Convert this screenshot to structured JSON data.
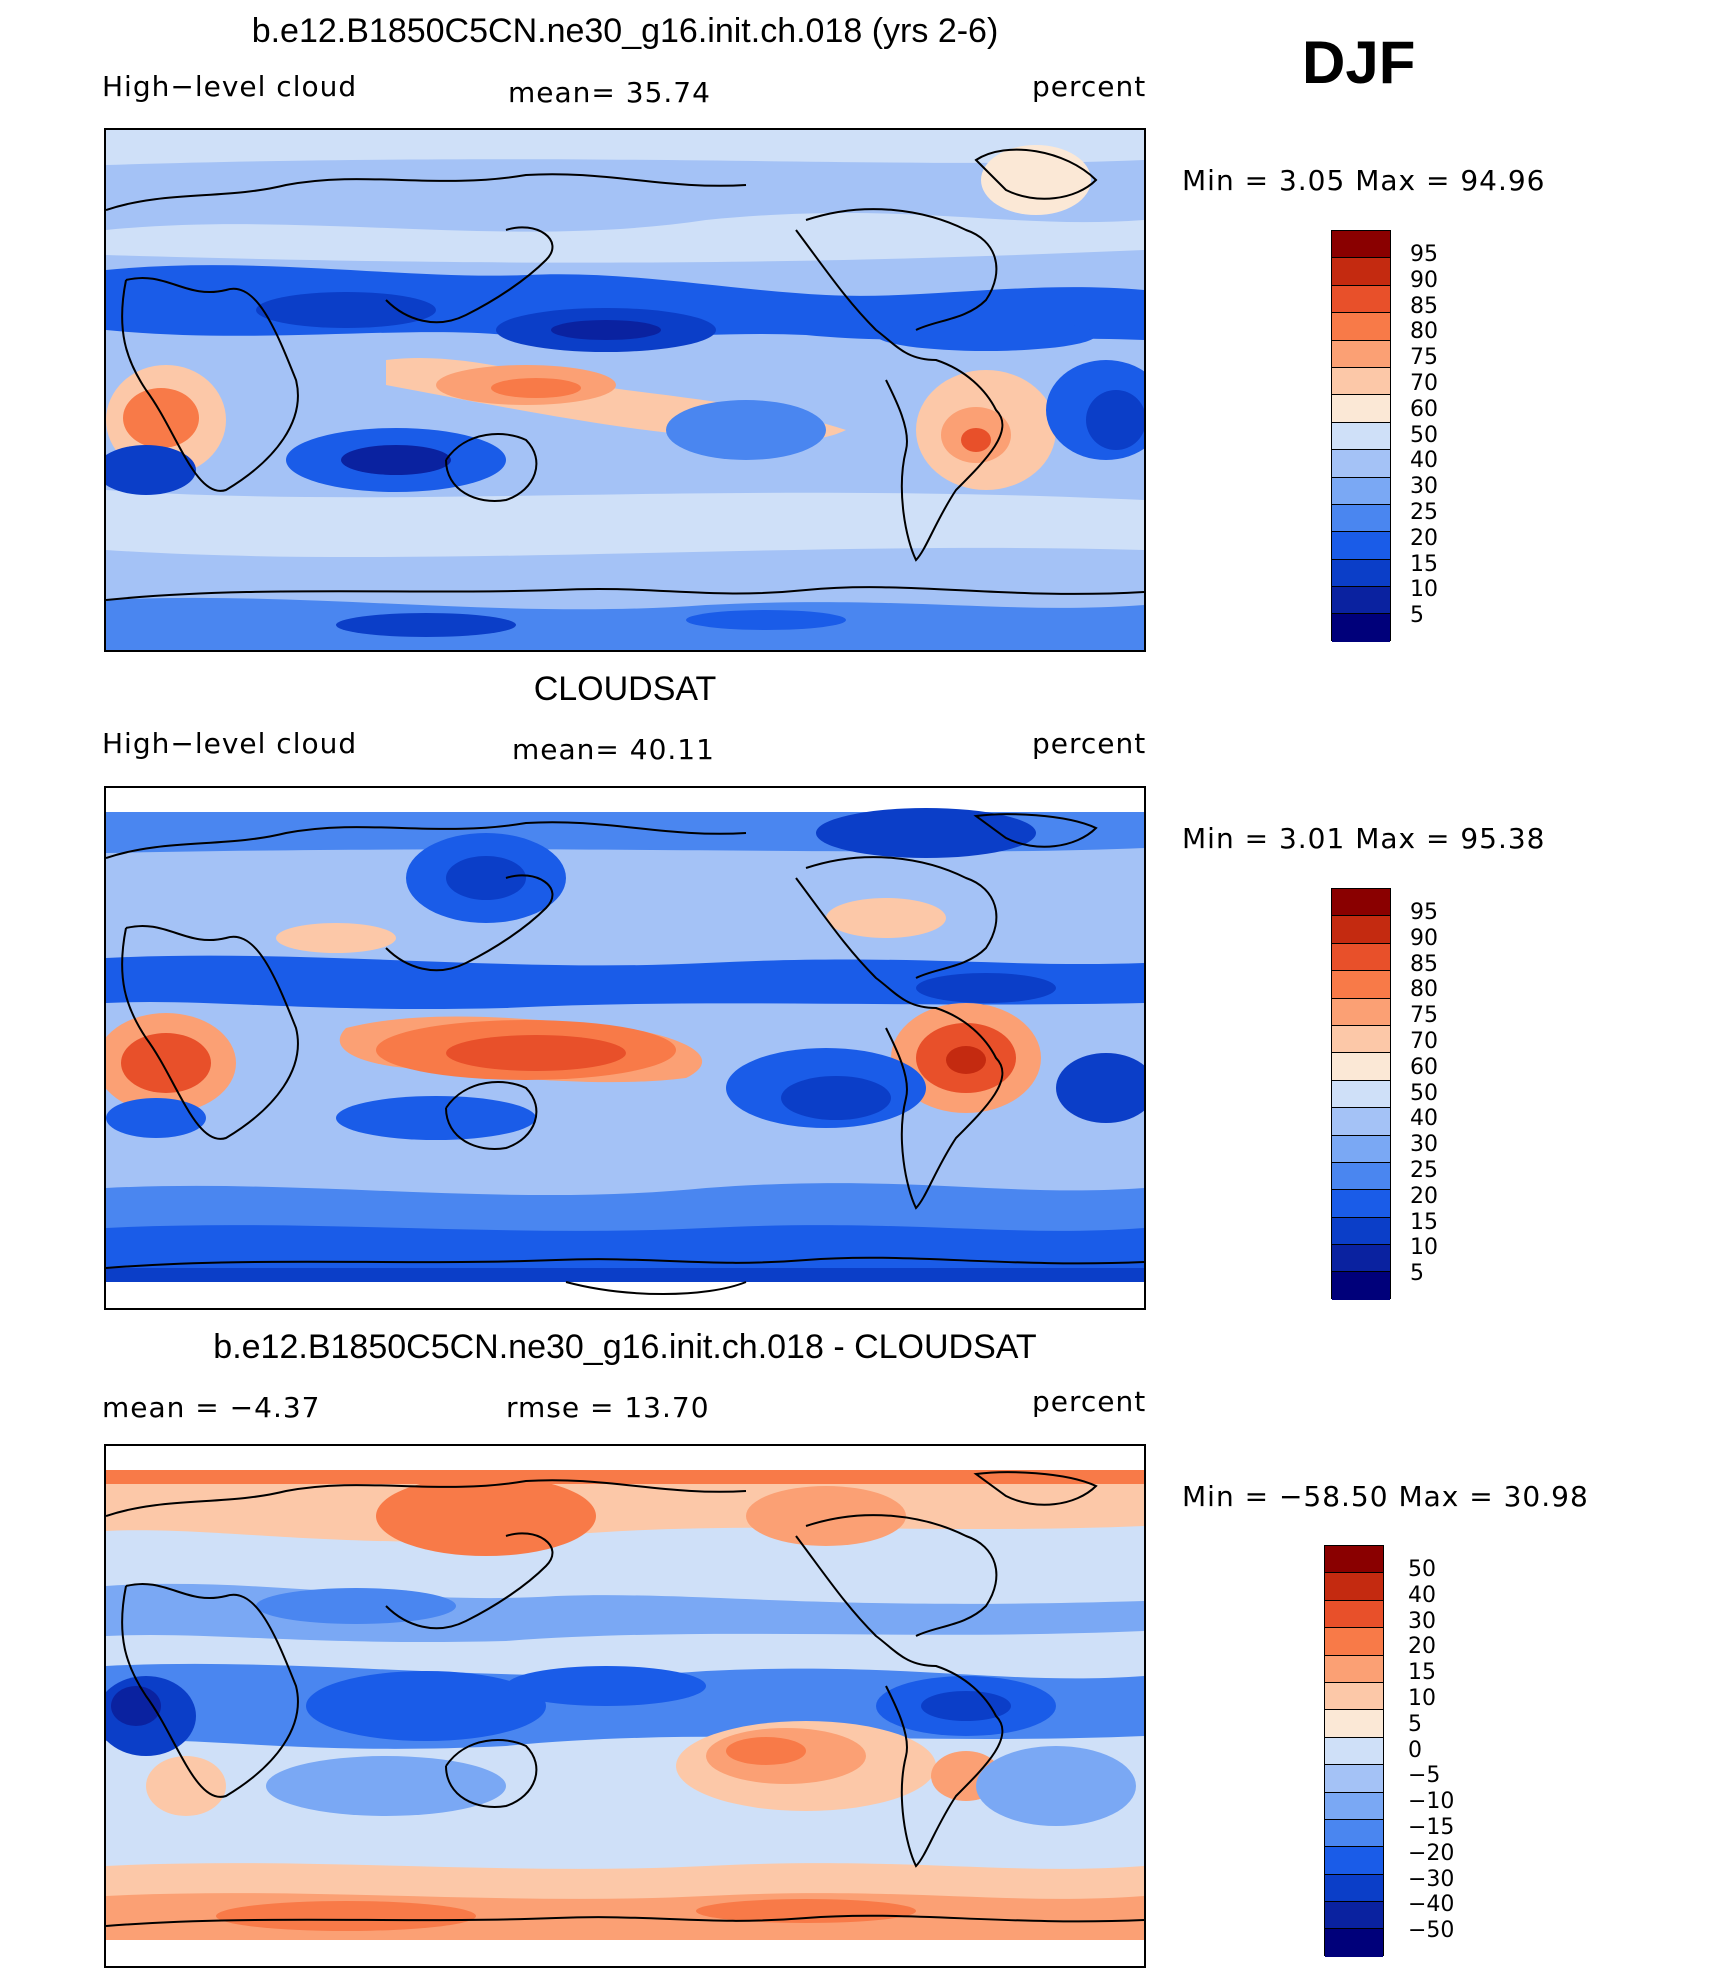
{
  "season": "DJF",
  "colors": {
    "abs": [
      "#00007a",
      "#0a22a0",
      "#0b3ec8",
      "#1a5ce8",
      "#4a86f0",
      "#7aa8f4",
      "#a4c2f6",
      "#cfe0f8",
      "#fbe8d6",
      "#fcc8a8",
      "#fba074",
      "#f87a48",
      "#e8502a",
      "#c42a10",
      "#8a0000"
    ],
    "diff": [
      "#00007a",
      "#0a22a0",
      "#0b3ec8",
      "#1a5ce8",
      "#4a86f0",
      "#7aa8f4",
      "#a4c2f6",
      "#cfe0f8",
      "#fbe8d6",
      "#fcc8a8",
      "#fba074",
      "#f87a48",
      "#e8502a",
      "#c42a10",
      "#8a0000"
    ]
  },
  "panels": [
    {
      "title": "b.e12.B1850C5CN.ne30_g16.init.ch.018 (yrs 2-6)",
      "left": "High−level cloud",
      "center": "mean=   35.74",
      "right": "percent",
      "minmax": "Min =    3.05  Max =   94.96",
      "colorbar": [
        "95",
        "90",
        "85",
        "80",
        "75",
        "70",
        "60",
        "50",
        "40",
        "30",
        "25",
        "20",
        "15",
        "10",
        "5"
      ]
    },
    {
      "title": "CLOUDSAT",
      "left": "High−level cloud",
      "center": "mean=   40.11",
      "right": "percent",
      "minmax": "Min =    3.01  Max =   95.38",
      "colorbar": [
        "95",
        "90",
        "85",
        "80",
        "75",
        "70",
        "60",
        "50",
        "40",
        "30",
        "25",
        "20",
        "15",
        "10",
        "5"
      ]
    },
    {
      "title": "b.e12.B1850C5CN.ne30_g16.init.ch.018 - CLOUDSAT",
      "left": "mean =   −4.37",
      "center": "rmse =   13.70",
      "right": "percent",
      "minmax": "Min = −58.50  Max =   30.98",
      "colorbar": [
        "50",
        "40",
        "30",
        "20",
        "15",
        "10",
        "5",
        "0",
        "−5",
        "−10",
        "−15",
        "−20",
        "−30",
        "−40",
        "−50"
      ]
    }
  ]
}
